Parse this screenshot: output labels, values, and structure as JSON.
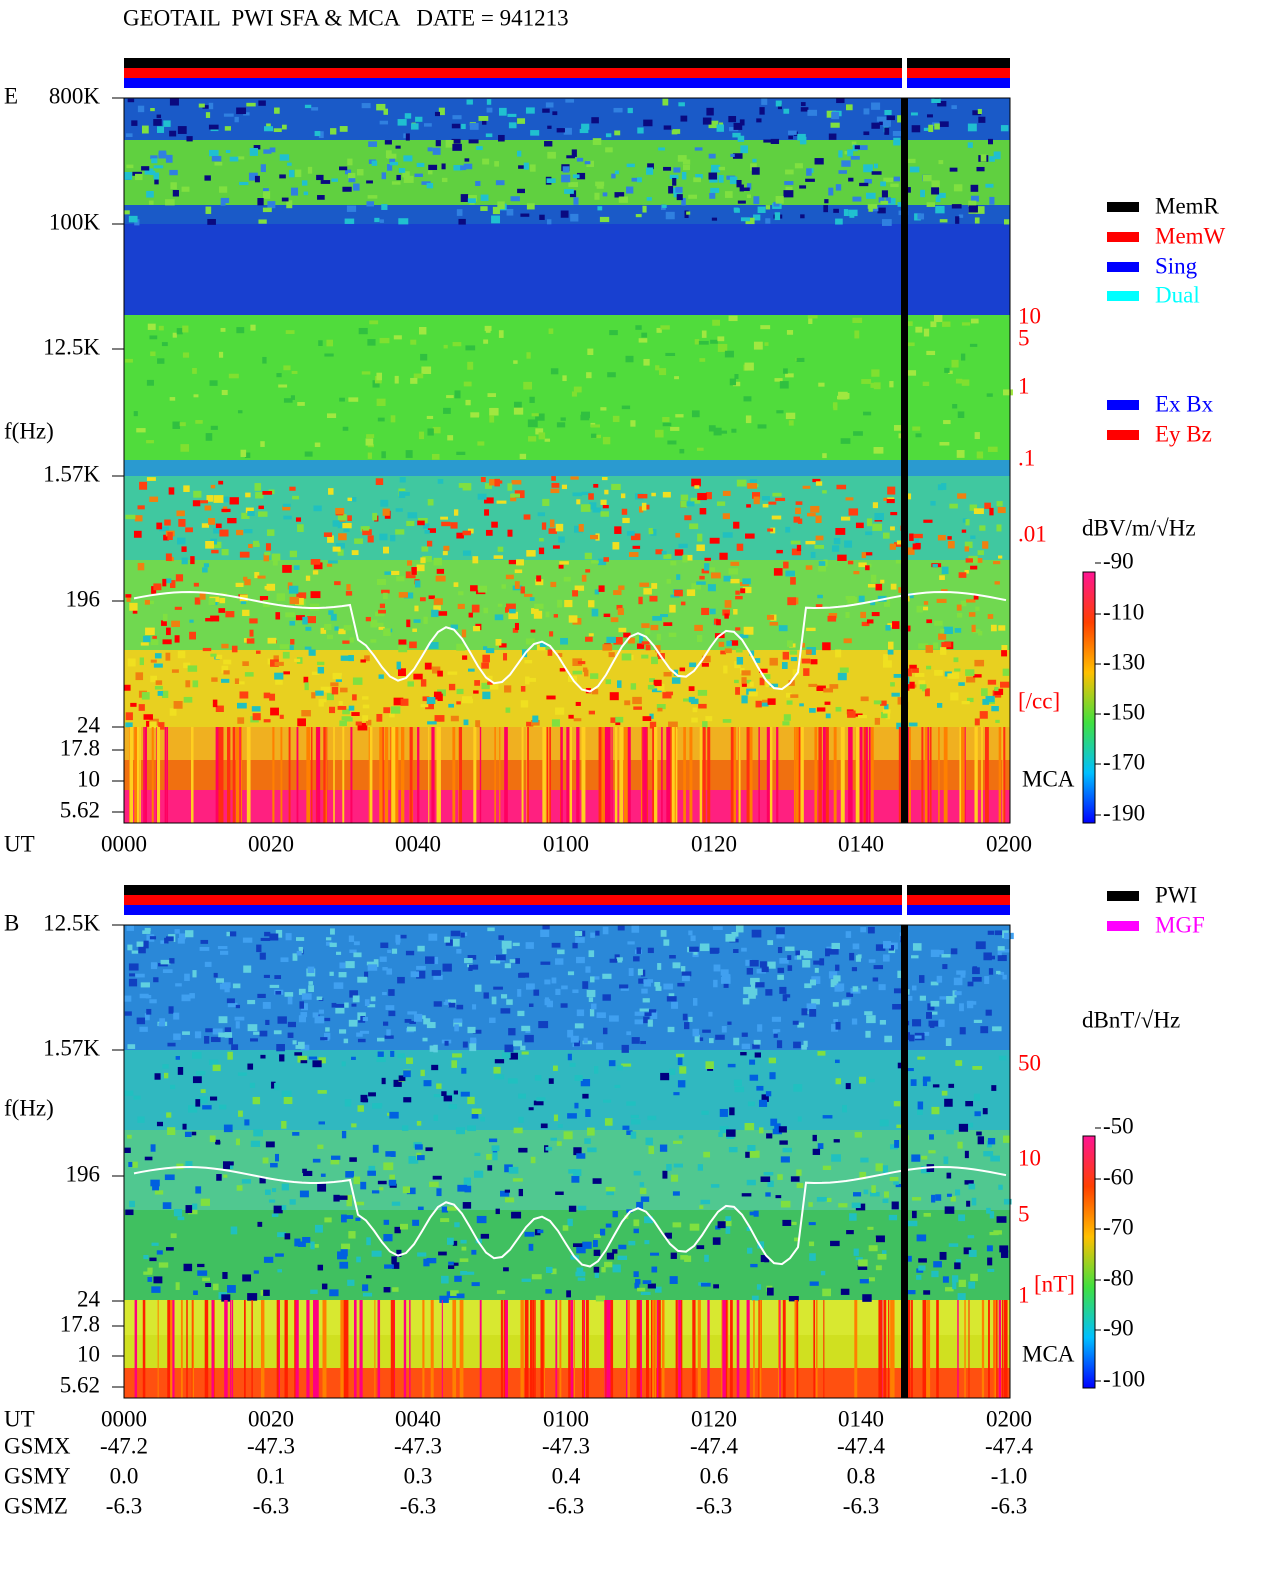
{
  "title": "GEOTAIL  PWI SFA & MCA   DATE = 941213",
  "panel_e": {
    "label": "E",
    "freq_labels": [
      "800K",
      "100K",
      "12.5K",
      "1.57K",
      "196",
      "24",
      "17.8",
      "10",
      "5.62"
    ],
    "f_label": "f(Hz)",
    "ut_label": "UT",
    "time_labels": [
      "0000",
      "0020",
      "0040",
      "0100",
      "0120",
      "0140",
      "0200"
    ],
    "right_scale": [
      "10",
      "5",
      "1",
      ".1",
      ".01",
      "[/cc]"
    ],
    "mca": "MCA",
    "legend": [
      {
        "name": "MemR",
        "color": "#000000"
      },
      {
        "name": "MemW",
        "color": "#ff0000"
      },
      {
        "name": "Sing",
        "color": "#0000ff"
      },
      {
        "name": "Dual",
        "color": "#00ffff"
      }
    ],
    "legend2": [
      {
        "name": "Ex Bx",
        "color": "#0000ff"
      },
      {
        "name": "Ey Bz",
        "color": "#ff0000"
      }
    ],
    "units": "dBV/m/√Hz",
    "colorbar_labels": [
      "-90",
      "-110",
      "-130",
      "-150",
      "-170",
      "-190"
    ]
  },
  "panel_b": {
    "label": "B",
    "freq_labels": [
      "12.5K",
      "1.57K",
      "196",
      "24",
      "17.8",
      "10",
      "5.62"
    ],
    "f_label": "f(Hz)",
    "ut_label": "UT",
    "time_labels": [
      "0000",
      "0020",
      "0040",
      "0100",
      "0120",
      "0140",
      "0200"
    ],
    "right_scale": [
      "50",
      "10",
      "5",
      "1",
      "[nT]"
    ],
    "mca": "MCA",
    "legend": [
      {
        "name": "PWI",
        "color": "#000000"
      },
      {
        "name": "MGF",
        "color": "#ff00ff"
      }
    ],
    "units": "dBnT/√Hz",
    "colorbar_labels": [
      "-50",
      "-60",
      "-70",
      "-80",
      "-90",
      "-100"
    ]
  },
  "orbit": {
    "rows": [
      {
        "name": "GSMX",
        "values": [
          "-47.2",
          "-47.3",
          "-47.3",
          "-47.3",
          "-47.4",
          "-47.4",
          "-47.4"
        ]
      },
      {
        "name": "GSMY",
        "values": [
          "0.0",
          "0.1",
          "0.3",
          "0.4",
          "0.6",
          "0.8",
          "-1.0"
        ]
      },
      {
        "name": "GSMZ",
        "values": [
          "-6.3",
          "-6.3",
          "-6.3",
          "-6.3",
          "-6.3",
          "-6.3",
          "-6.3"
        ]
      }
    ]
  }
}
